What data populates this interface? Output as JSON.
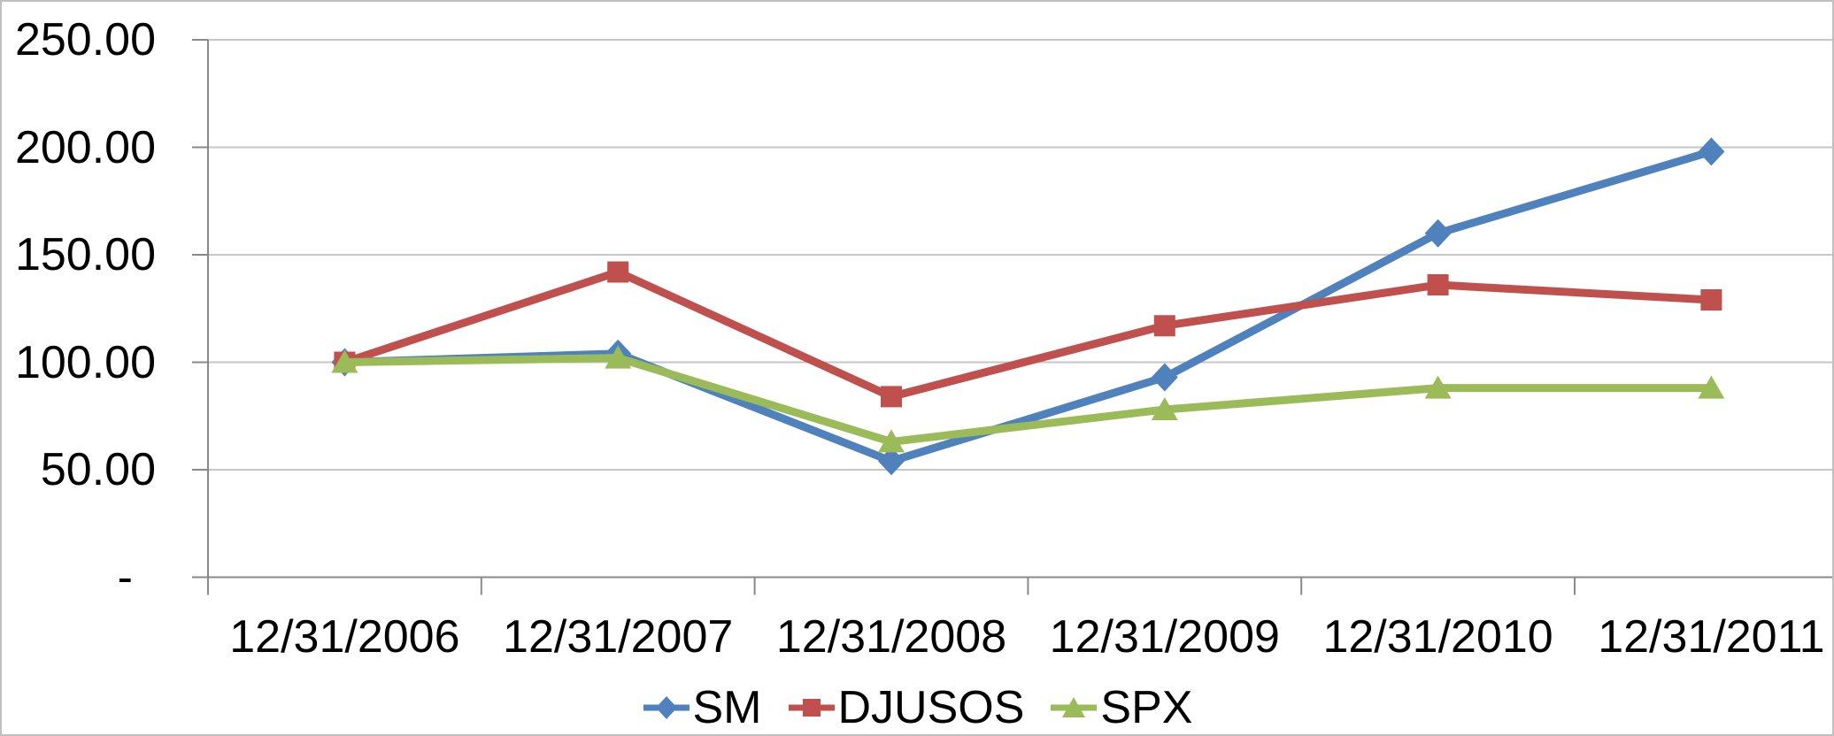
{
  "chart_data": {
    "type": "line",
    "title": "",
    "xlabel": "",
    "ylabel": "",
    "grid": true,
    "legend_position": "bottom",
    "categories": [
      "12/31/2006",
      "12/31/2007",
      "12/31/2008",
      "12/31/2009",
      "12/31/2010",
      "12/31/2011"
    ],
    "series": [
      {
        "name": "SM",
        "marker": "diamond",
        "color": "#4F81BD",
        "values": [
          100,
          104,
          54,
          93,
          160,
          198
        ]
      },
      {
        "name": "DJUSOS",
        "marker": "square",
        "color": "#C0504D",
        "values": [
          100,
          142,
          84,
          117,
          136,
          129
        ]
      },
      {
        "name": "SPX",
        "marker": "triangle",
        "color": "#9BBB59",
        "values": [
          100,
          102,
          63,
          78,
          88,
          88
        ]
      }
    ],
    "y_axis": {
      "min": 0,
      "max": 250,
      "ticks": [
        {
          "label": "250.00",
          "value": 250
        },
        {
          "label": "200.00",
          "value": 200
        },
        {
          "label": "150.00",
          "value": 150
        },
        {
          "label": "100.00",
          "value": 100
        },
        {
          "label": "50.00",
          "value": 50
        },
        {
          "label": "-",
          "value": 0
        }
      ]
    }
  },
  "colors": {
    "gridline": "#C6C6C6",
    "axis": "#898989",
    "text": "#000000",
    "border": "#BFBFBF",
    "background": "#FFFFFF"
  }
}
